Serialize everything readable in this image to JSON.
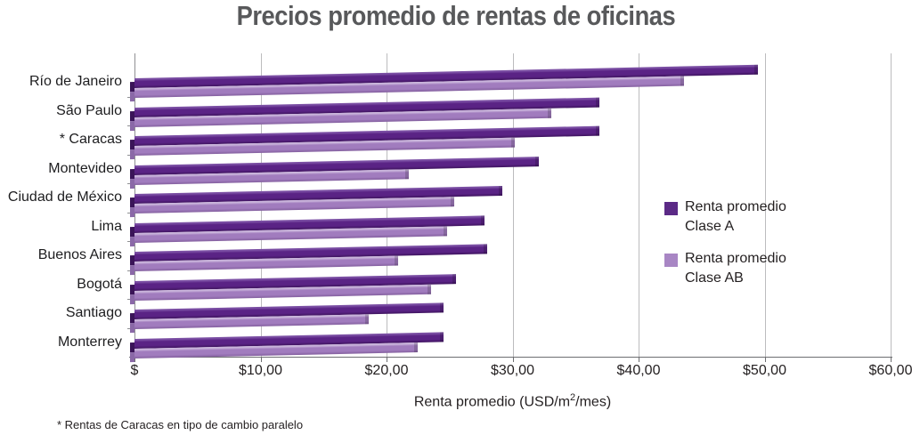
{
  "title": "Precios promedio de rentas de oficinas",
  "footnote": "* Rentas de Caracas en tipo de cambio paralelo",
  "xlabel_parts": {
    "pre": "Renta promedio (USD/m",
    "sup": "2",
    "post": "/mes)"
  },
  "colors": {
    "title_text": "#58595b",
    "axis_text": "#231f20",
    "gridline": "#bcbcbe",
    "axis_line": "#6d6e71",
    "clase_a": {
      "top": "#7b4fa4",
      "mid": "#5a2385",
      "bottom": "#3f145f",
      "cap": "#3a1458",
      "swatch": "#5b2a86"
    },
    "clase_ab": {
      "top": "#c9b4db",
      "mid": "#a17cbe",
      "bottom": "#84609f",
      "cap": "#8a68a7",
      "swatch": "#a886c4"
    }
  },
  "legend": {
    "entries": [
      {
        "line1": "Renta promedio",
        "line2": "Clase A",
        "series": "clase_a"
      },
      {
        "line1": "Renta promedio",
        "line2": "Clase AB",
        "series": "clase_ab"
      }
    ]
  },
  "chart_data": {
    "type": "bar",
    "orientation": "horizontal",
    "title": "Precios promedio de rentas de oficinas",
    "xlabel": "Renta promedio (USD/m2/mes)",
    "xlim": [
      0,
      60
    ],
    "grid": true,
    "legend_position": "right",
    "categories": [
      "Río de Janeiro",
      "São Paulo",
      "* Caracas",
      "Montevideo",
      "Ciudad de México",
      "Lima",
      "Buenos Aires",
      "Bogotá",
      "Santiago",
      "Monterrey"
    ],
    "series": [
      {
        "name": "Renta promedio Clase A",
        "key": "clase_a",
        "values": [
          49.5,
          36.9,
          36.9,
          32.1,
          29.2,
          27.8,
          28.0,
          25.5,
          24.5,
          24.5
        ]
      },
      {
        "name": "Renta promedio Clase AB",
        "key": "clase_ab",
        "values": [
          43.6,
          33.1,
          30.2,
          21.8,
          25.4,
          24.8,
          20.9,
          23.5,
          18.6,
          22.5
        ]
      }
    ],
    "xticks": [
      {
        "value": 0,
        "label": "$"
      },
      {
        "value": 10,
        "label": "$10,00"
      },
      {
        "value": 20,
        "label": "$20,00"
      },
      {
        "value": 30,
        "label": "$30,00"
      },
      {
        "value": 40,
        "label": "$40,00"
      },
      {
        "value": 50,
        "label": "$50,00"
      },
      {
        "value": 60,
        "label": "$60,00"
      }
    ]
  }
}
